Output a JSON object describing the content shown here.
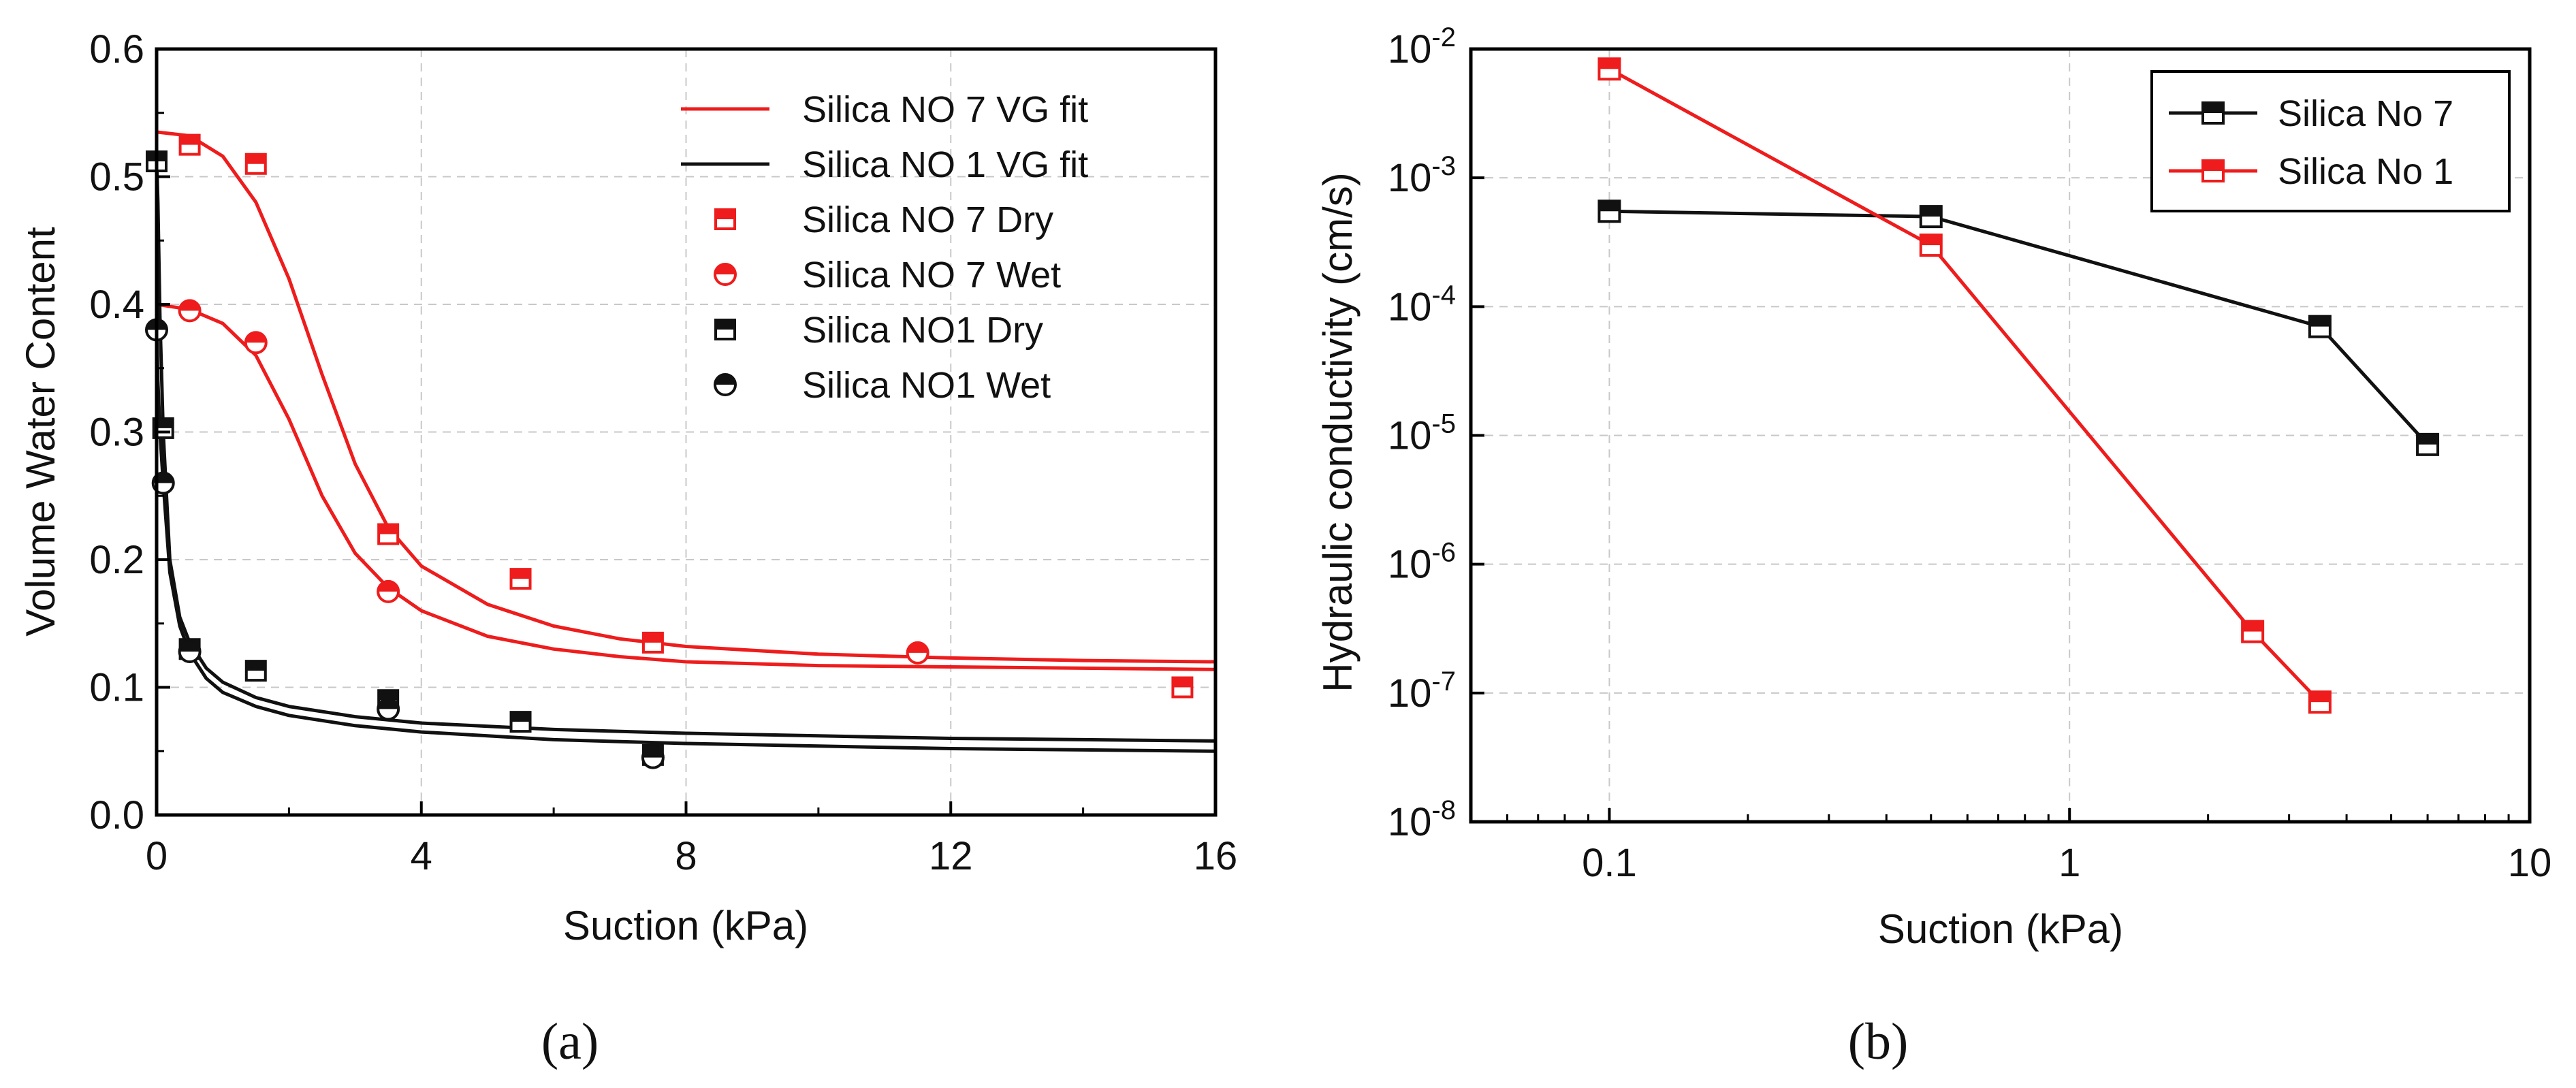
{
  "colors": {
    "red": "#ee1c1c",
    "black": "#111111"
  },
  "chart_data": [
    {
      "panel": "(a)",
      "type": "scatter",
      "caption": "(a)",
      "xlabel": "Suction (kPa)",
      "ylabel": "Volume Water Content",
      "xlim": [
        0,
        16
      ],
      "ylim": [
        0,
        0.6
      ],
      "xticks": [
        0,
        4,
        8,
        12,
        16
      ],
      "yticks": [
        0.0,
        0.1,
        0.2,
        0.3,
        0.4,
        0.5,
        0.6
      ],
      "xtick_labels": [
        "0",
        "4",
        "8",
        "12",
        "16"
      ],
      "ytick_labels": [
        "0.0",
        "0.1",
        "0.2",
        "0.3",
        "0.4",
        "0.5",
        "0.6"
      ],
      "grid": true,
      "legend_position": "top-right",
      "series": [
        {
          "name": "Silica NO 7 VG fit",
          "kind": "line",
          "color": "#ee1c1c",
          "x": [
            0,
            0.5,
            1,
            1.5,
            2,
            2.5,
            3,
            3.5,
            4,
            5,
            6,
            7,
            8,
            10,
            12,
            14,
            16
          ],
          "y": [
            0.535,
            0.532,
            0.516,
            0.48,
            0.42,
            0.345,
            0.275,
            0.225,
            0.195,
            0.165,
            0.148,
            0.138,
            0.132,
            0.126,
            0.123,
            0.121,
            0.12
          ]
        },
        {
          "name": "Silica NO 7 VG fit",
          "kind": "line",
          "color": "#ee1c1c",
          "x": [
            0,
            0.5,
            1,
            1.5,
            2,
            2.5,
            3,
            3.5,
            4,
            5,
            6,
            7,
            8,
            10,
            12,
            14,
            16
          ],
          "y": [
            0.4,
            0.396,
            0.385,
            0.36,
            0.31,
            0.25,
            0.205,
            0.178,
            0.16,
            0.14,
            0.13,
            0.124,
            0.12,
            0.117,
            0.116,
            0.115,
            0.114
          ]
        },
        {
          "name": "Silica NO 1 VG fit",
          "kind": "line",
          "color": "#111111",
          "x": [
            0,
            0.02,
            0.05,
            0.1,
            0.2,
            0.35,
            0.5,
            0.75,
            1,
            1.5,
            2,
            3,
            4,
            6,
            8,
            10,
            12,
            14,
            16
          ],
          "y": [
            0.515,
            0.48,
            0.39,
            0.3,
            0.2,
            0.155,
            0.135,
            0.115,
            0.104,
            0.092,
            0.085,
            0.077,
            0.072,
            0.067,
            0.064,
            0.062,
            0.06,
            0.059,
            0.058
          ]
        },
        {
          "name": "Silica NO 1 VG fit",
          "kind": "line",
          "color": "#111111",
          "x": [
            0,
            0.02,
            0.05,
            0.1,
            0.2,
            0.35,
            0.5,
            0.75,
            1,
            1.5,
            2,
            3,
            4,
            6,
            8,
            10,
            12,
            14,
            16
          ],
          "y": [
            0.38,
            0.34,
            0.3,
            0.26,
            0.19,
            0.148,
            0.127,
            0.107,
            0.096,
            0.085,
            0.078,
            0.07,
            0.065,
            0.059,
            0.056,
            0.054,
            0.052,
            0.051,
            0.05
          ]
        },
        {
          "name": "Silica NO 7 Dry",
          "kind": "marker",
          "marker": "square-half",
          "color": "#ee1c1c",
          "x": [
            0.5,
            1.5,
            3.5,
            5.5,
            7.5,
            15.5
          ],
          "y": [
            0.525,
            0.51,
            0.22,
            0.185,
            0.135,
            0.1
          ]
        },
        {
          "name": "Silica NO 7 Wet",
          "kind": "marker",
          "marker": "circle-half",
          "color": "#ee1c1c",
          "x": [
            0.5,
            1.5,
            3.5,
            11.5
          ],
          "y": [
            0.395,
            0.37,
            0.175,
            0.127
          ]
        },
        {
          "name": "Silica NO1 Dry",
          "kind": "marker",
          "marker": "square-half",
          "color": "#111111",
          "x": [
            0,
            0.1,
            0.5,
            1.5,
            3.5,
            5.5,
            7.5
          ],
          "y": [
            0.512,
            0.303,
            0.13,
            0.113,
            0.09,
            0.073,
            0.047
          ]
        },
        {
          "name": "Silica NO1 Wet",
          "kind": "marker",
          "marker": "circle-half",
          "color": "#111111",
          "x": [
            0,
            0.1,
            0.5,
            3.5,
            7.5
          ],
          "y": [
            0.38,
            0.26,
            0.128,
            0.083,
            0.045
          ]
        }
      ],
      "legend": [
        {
          "label": "Silica NO 7 VG fit",
          "kind": "line",
          "color": "#ee1c1c"
        },
        {
          "label": "Silica NO 1 VG fit",
          "kind": "line",
          "color": "#111111"
        },
        {
          "label": "Silica NO 7 Dry",
          "kind": "marker",
          "marker": "square-half",
          "color": "#ee1c1c"
        },
        {
          "label": "Silica NO 7 Wet",
          "kind": "marker",
          "marker": "circle-half",
          "color": "#ee1c1c"
        },
        {
          "label": "Silica NO1 Dry",
          "kind": "marker",
          "marker": "square-half",
          "color": "#111111"
        },
        {
          "label": "Silica NO1 Wet",
          "kind": "marker",
          "marker": "circle-half",
          "color": "#111111"
        }
      ]
    },
    {
      "panel": "(b)",
      "type": "line",
      "caption": "(b)",
      "xlabel": "Suction (kPa)",
      "ylabel": "Hydraulic conductivity (cm/s)",
      "xscale": "log",
      "yscale": "log",
      "xlim": [
        0.05,
        10
      ],
      "ylim_exponent": [
        -8,
        -2
      ],
      "xticks": [
        0.1,
        1,
        10
      ],
      "xtick_labels": [
        "0.1",
        "1",
        "10"
      ],
      "yticks_exponent": [
        -8,
        -7,
        -6,
        -5,
        -4,
        -3,
        -2
      ],
      "ytick_base": "10",
      "ytick_exponents": [
        "-8",
        "-7",
        "-6",
        "-5",
        "-4",
        "-3",
        "-2"
      ],
      "grid": true,
      "legend_position": "top-right",
      "series": [
        {
          "name": "Silica No 7",
          "kind": "line-marker",
          "marker": "square-half",
          "color": "#111111",
          "x": [
            0.1,
            0.5,
            3.5,
            6
          ],
          "y": [
            0.00055,
            0.0005,
            7e-05,
            8.5e-06
          ]
        },
        {
          "name": "Silica No 1",
          "kind": "line-marker",
          "marker": "square-half",
          "color": "#ee1c1c",
          "x": [
            0.1,
            0.5,
            2.5,
            3.5
          ],
          "y": [
            0.007,
            0.0003,
            3e-07,
            8.5e-08
          ]
        }
      ],
      "legend": [
        {
          "label": "Silica No 7",
          "color": "#111111"
        },
        {
          "label": "Silica No 1",
          "color": "#ee1c1c"
        }
      ]
    }
  ]
}
